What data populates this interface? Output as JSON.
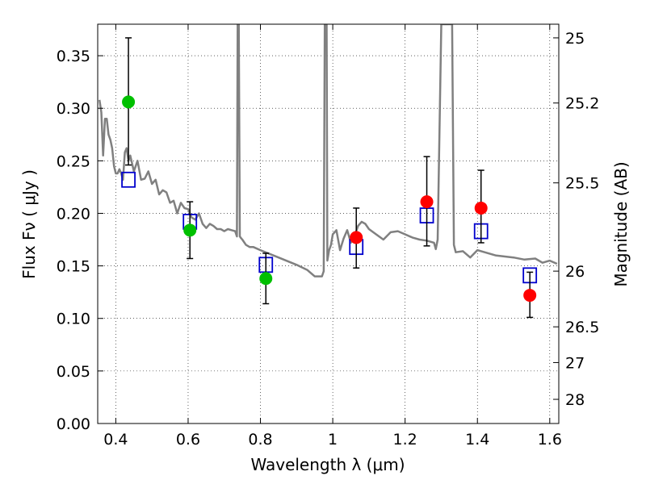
{
  "chart_data": {
    "type": "scatter",
    "xlabel": "Wavelength  λ (μm)",
    "ylabel": "Flux  Fν  ( μJy )",
    "y2label": "Magnitude (AB)",
    "xlim": [
      0.35,
      1.625
    ],
    "ylim": [
      0.0,
      0.38
    ],
    "grid": true,
    "x_ticks": [
      {
        "value": 0.4,
        "label": "0.4"
      },
      {
        "value": 0.6,
        "label": "0.6"
      },
      {
        "value": 0.8,
        "label": "0.8"
      },
      {
        "value": 1.0,
        "label": "1"
      },
      {
        "value": 1.2,
        "label": "1.2"
      },
      {
        "value": 1.4,
        "label": "1.4"
      },
      {
        "value": 1.6,
        "label": "1.6"
      }
    ],
    "y_ticks": [
      {
        "value": 0.0,
        "label": "0.00"
      },
      {
        "value": 0.05,
        "label": "0.05"
      },
      {
        "value": 0.1,
        "label": "0.10"
      },
      {
        "value": 0.15,
        "label": "0.15"
      },
      {
        "value": 0.2,
        "label": "0.20"
      },
      {
        "value": 0.25,
        "label": "0.25"
      },
      {
        "value": 0.3,
        "label": "0.30"
      },
      {
        "value": 0.35,
        "label": "0.35"
      }
    ],
    "y2_ticks": [
      {
        "flux": 0.367,
        "label": "25"
      },
      {
        "flux": 0.305,
        "label": "25.2"
      },
      {
        "flux": 0.229,
        "label": "25.5"
      },
      {
        "flux": 0.145,
        "label": "26"
      },
      {
        "flux": 0.092,
        "label": "26.5"
      },
      {
        "flux": 0.058,
        "label": "27"
      },
      {
        "flux": 0.023,
        "label": "28"
      }
    ],
    "series": [
      {
        "kind": "line",
        "color": "#808080",
        "x": [
          0.355,
          0.36,
          0.365,
          0.37,
          0.375,
          0.38,
          0.385,
          0.39,
          0.395,
          0.4,
          0.405,
          0.41,
          0.415,
          0.42,
          0.425,
          0.43,
          0.435,
          0.44,
          0.45,
          0.46,
          0.47,
          0.48,
          0.49,
          0.5,
          0.51,
          0.52,
          0.53,
          0.54,
          0.55,
          0.56,
          0.57,
          0.58,
          0.59,
          0.6,
          0.61,
          0.62,
          0.63,
          0.64,
          0.65,
          0.66,
          0.67,
          0.68,
          0.69,
          0.7,
          0.71,
          0.72,
          0.73,
          0.735,
          0.737,
          0.74,
          0.743,
          0.745,
          0.75,
          0.76,
          0.77,
          0.78,
          0.8,
          0.85,
          0.9,
          0.93,
          0.95,
          0.97,
          0.975,
          0.978,
          0.98,
          0.983,
          0.985,
          0.99,
          0.995,
          1.0,
          1.01,
          1.02,
          1.03,
          1.04,
          1.05,
          1.06,
          1.07,
          1.08,
          1.09,
          1.1,
          1.12,
          1.14,
          1.16,
          1.18,
          1.2,
          1.22,
          1.24,
          1.26,
          1.28,
          1.285,
          1.29,
          1.3,
          1.31,
          1.32,
          1.33,
          1.335,
          1.34,
          1.36,
          1.38,
          1.4,
          1.42,
          1.45,
          1.5,
          1.53,
          1.56,
          1.58,
          1.6,
          1.62
        ],
        "y": [
          0.308,
          0.296,
          0.255,
          0.29,
          0.29,
          0.275,
          0.27,
          0.262,
          0.245,
          0.238,
          0.238,
          0.242,
          0.238,
          0.232,
          0.258,
          0.262,
          0.25,
          0.255,
          0.24,
          0.25,
          0.232,
          0.233,
          0.24,
          0.228,
          0.232,
          0.218,
          0.222,
          0.22,
          0.21,
          0.212,
          0.2,
          0.21,
          0.205,
          0.204,
          0.196,
          0.194,
          0.2,
          0.19,
          0.186,
          0.19,
          0.188,
          0.185,
          0.185,
          0.183,
          0.185,
          0.184,
          0.183,
          0.178,
          0.38,
          0.38,
          0.178,
          0.177,
          0.175,
          0.17,
          0.168,
          0.168,
          0.165,
          0.158,
          0.151,
          0.146,
          0.14,
          0.14,
          0.145,
          0.38,
          0.38,
          0.38,
          0.155,
          0.165,
          0.17,
          0.18,
          0.184,
          0.165,
          0.176,
          0.184,
          0.172,
          0.178,
          0.188,
          0.192,
          0.19,
          0.185,
          0.18,
          0.175,
          0.182,
          0.183,
          0.18,
          0.177,
          0.175,
          0.174,
          0.172,
          0.166,
          0.175,
          0.38,
          0.38,
          0.38,
          0.38,
          0.17,
          0.163,
          0.164,
          0.158,
          0.165,
          0.163,
          0.16,
          0.158,
          0.156,
          0.157,
          0.153,
          0.155,
          0.152
        ]
      },
      {
        "kind": "points",
        "color": "#00c000",
        "x": [
          0.435,
          0.605,
          0.815
        ],
        "y": [
          0.306,
          0.184,
          0.138
        ],
        "yerr_low": [
          0.246,
          0.157,
          0.114
        ],
        "yerr_high": [
          0.367,
          0.211,
          0.162
        ]
      },
      {
        "kind": "points",
        "color": "#ff0000",
        "x": [
          1.065,
          1.26,
          1.41,
          1.545
        ],
        "y": [
          0.177,
          0.211,
          0.205,
          0.122
        ],
        "yerr_low": [
          0.148,
          0.169,
          0.172,
          0.101
        ],
        "yerr_high": [
          0.205,
          0.254,
          0.241,
          0.144
        ]
      },
      {
        "kind": "model-points",
        "color": "#0000cc",
        "x": [
          0.435,
          0.605,
          0.815,
          1.065,
          1.26,
          1.41,
          1.545
        ],
        "y": [
          0.232,
          0.192,
          0.151,
          0.168,
          0.198,
          0.183,
          0.141
        ]
      }
    ]
  }
}
